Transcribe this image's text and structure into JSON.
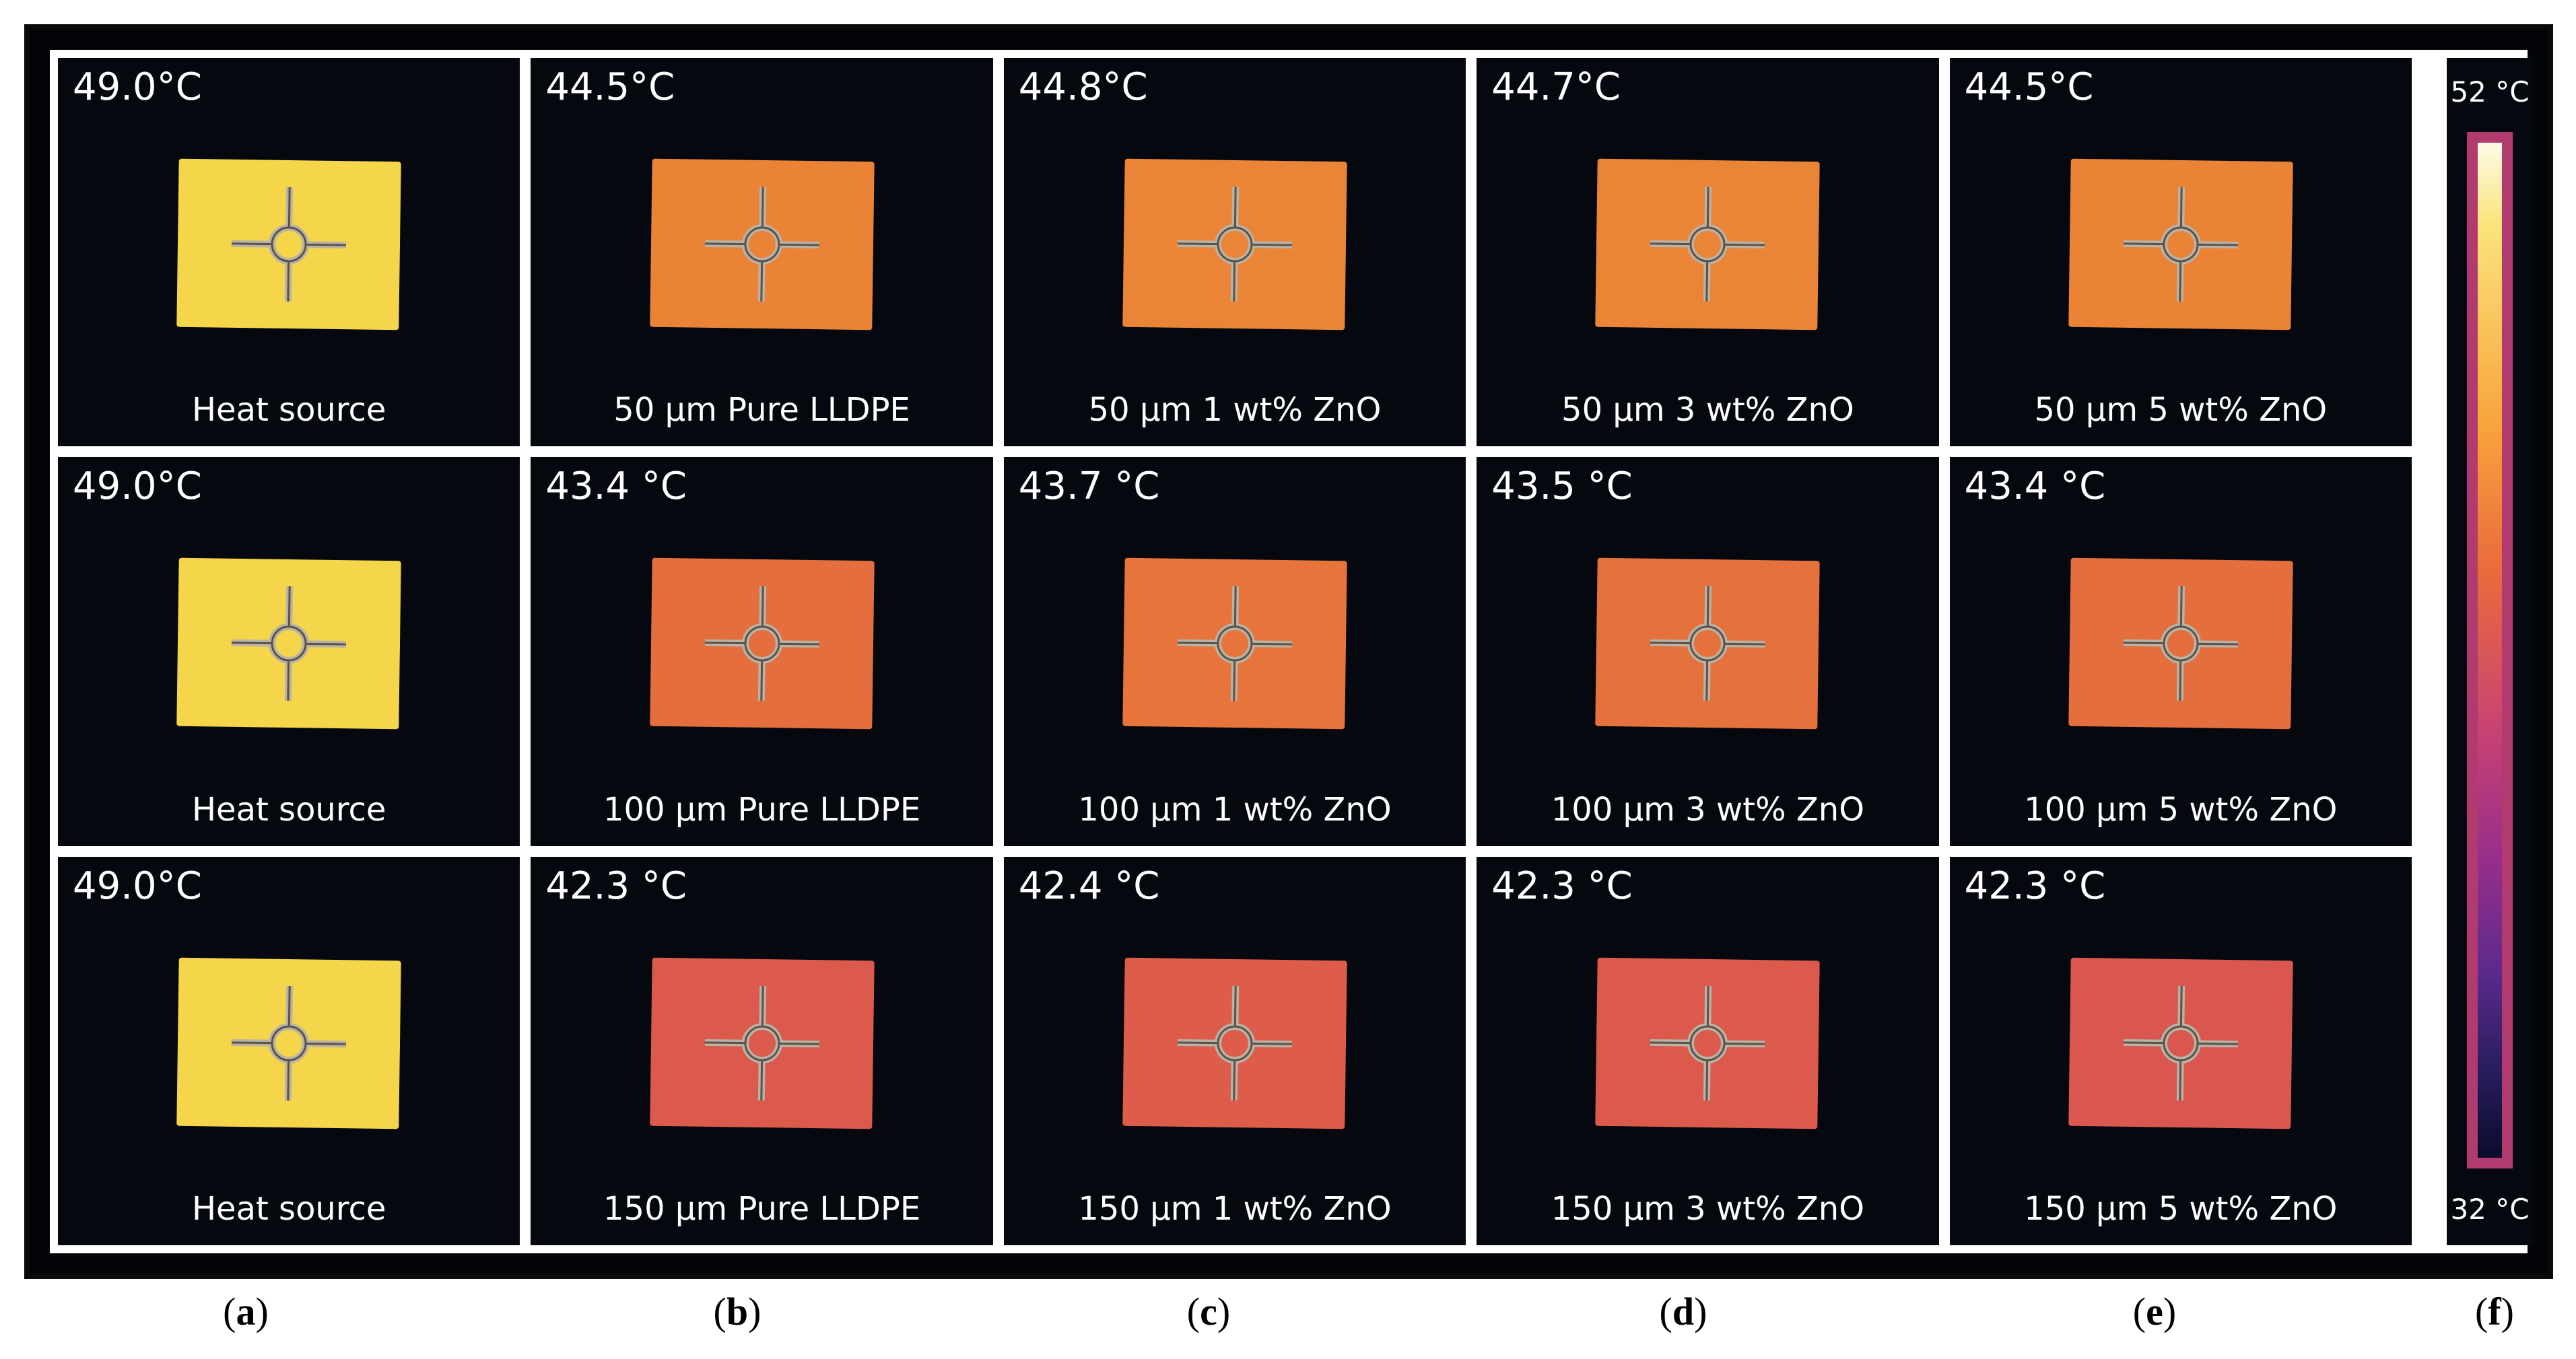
{
  "thermal_grid": {
    "rows": [
      [
        {
          "temp": "49.0°C",
          "label": "Heat source",
          "color": "#f5d54a"
        },
        {
          "temp": "44.5°C",
          "label": "50 µm Pure LLDPE",
          "color": "#ea8336"
        },
        {
          "temp": "44.8°C",
          "label": "50 µm 1 wt% ZnO",
          "color": "#ea8538"
        },
        {
          "temp": "44.7°C",
          "label": "50 µm 3 wt% ZnO",
          "color": "#ea8437"
        },
        {
          "temp": "44.5°C",
          "label": "50 µm 5 wt%  ZnO",
          "color": "#ea8336"
        }
      ],
      [
        {
          "temp": "49.0°C",
          "label": "Heat source",
          "color": "#f5d54a"
        },
        {
          "temp": "43.4 °C",
          "label": "100 µm Pure LLDPE",
          "color": "#e46e3d"
        },
        {
          "temp": "43.7 °C",
          "label": "100 µm 1 wt% ZnO",
          "color": "#e6743b"
        },
        {
          "temp": "43.5 °C",
          "label": "100 µm 3 wt% ZnO",
          "color": "#e5713c"
        },
        {
          "temp": "43.4 °C",
          "label": "100 µm 5 wt% ZnO",
          "color": "#e46e3d"
        }
      ],
      [
        {
          "temp": "49.0°C",
          "label": "Heat source",
          "color": "#f5d54a"
        },
        {
          "temp": "42.3 °C",
          "label": "150 µm Pure LLDPE",
          "color": "#dc5a4c"
        },
        {
          "temp": "42.4 °C",
          "label": "150 µm 1 wt% ZnO",
          "color": "#de5d4a"
        },
        {
          "temp": "42.3 °C",
          "label": "150 µm 3 wt% ZnO",
          "color": "#dc5a4c"
        },
        {
          "temp": "42.3 °C",
          "label": "150 µm 5 wt% ZnO",
          "color": "#d9574e"
        }
      ]
    ]
  },
  "colorbar": {
    "max": "52 °C",
    "min": "32 °C"
  },
  "panel_labels": [
    "a",
    "b",
    "c",
    "d",
    "e",
    "f"
  ]
}
